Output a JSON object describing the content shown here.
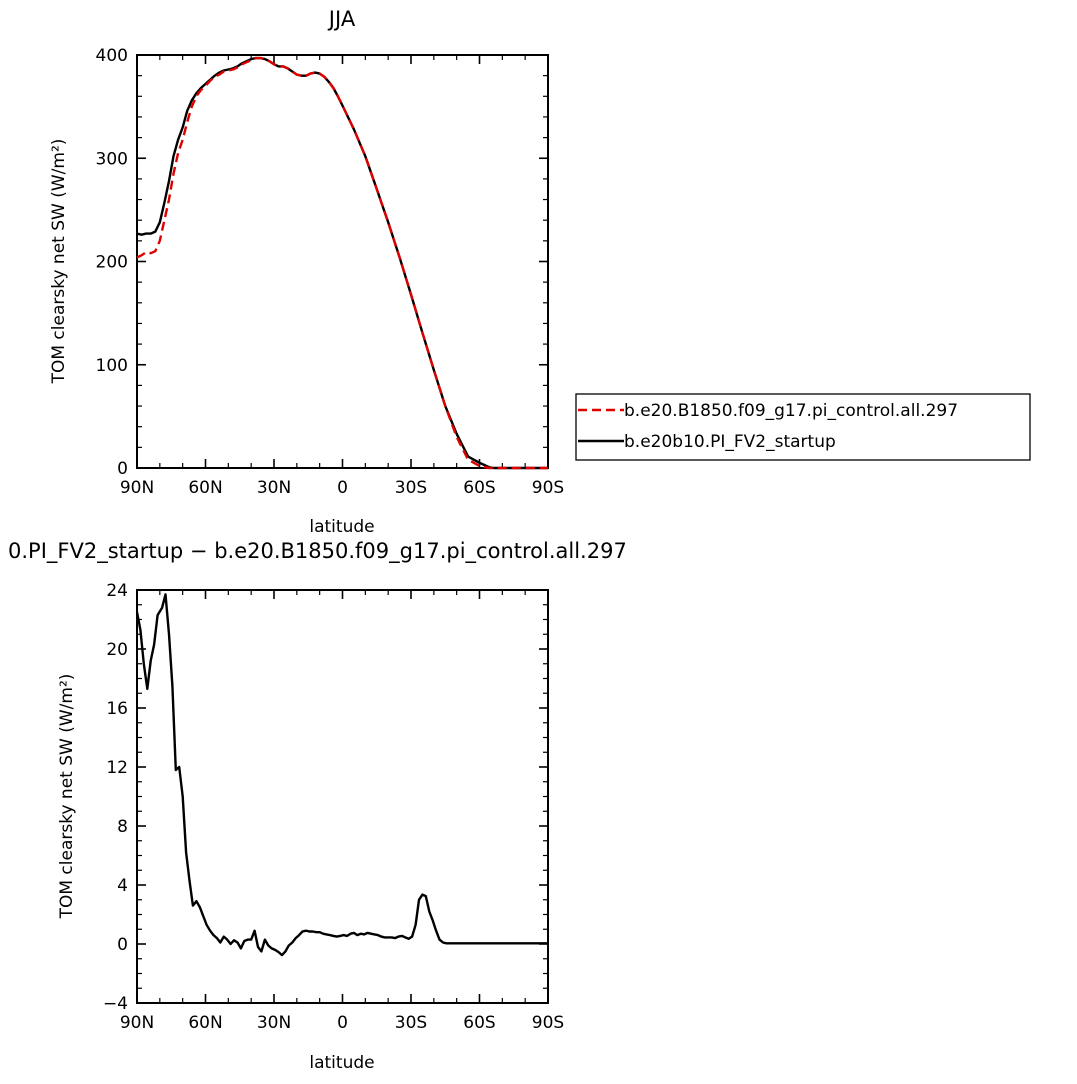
{
  "chart_data": [
    {
      "type": "line",
      "title": "JJA",
      "xlabel": "latitude",
      "ylabel": "TOM clearsky net SW (W/m²)",
      "xlim": [
        90,
        -90
      ],
      "ylim": [
        0,
        400
      ],
      "xticks": [
        {
          "value": 90,
          "label": "90N"
        },
        {
          "value": 60,
          "label": "60N"
        },
        {
          "value": 30,
          "label": "30N"
        },
        {
          "value": 0,
          "label": "0"
        },
        {
          "value": -30,
          "label": "30S"
        },
        {
          "value": -60,
          "label": "60S"
        },
        {
          "value": -90,
          "label": "90S"
        }
      ],
      "yticks": [
        {
          "value": 0,
          "label": "0"
        },
        {
          "value": 100,
          "label": "100"
        },
        {
          "value": 200,
          "label": "200"
        },
        {
          "value": 300,
          "label": "300"
        },
        {
          "value": 400,
          "label": "400"
        }
      ],
      "legend_position": "right",
      "series": [
        {
          "name": "b.e20.B1850.f09_g17.pi_control.all.297",
          "color": "#e00000",
          "dash": "dashed",
          "x": [
            90,
            88,
            86,
            84,
            82,
            80,
            78,
            76,
            74,
            72,
            70,
            68,
            66,
            64,
            62,
            60,
            58,
            56,
            54,
            52,
            50,
            48,
            46,
            44,
            42,
            40,
            38,
            36,
            34,
            32,
            30,
            28,
            26,
            24,
            22,
            20,
            18,
            16,
            14,
            12,
            10,
            8,
            6,
            4,
            2,
            0,
            -5,
            -10,
            -15,
            -20,
            -25,
            -30,
            -35,
            -40,
            -45,
            -50,
            -55,
            -60,
            -62,
            -64,
            -66,
            -68,
            -70,
            -72,
            -75,
            -80,
            -85,
            -90
          ],
          "y": [
            204,
            206,
            209,
            208,
            210,
            220,
            240,
            260,
            285,
            305,
            318,
            335,
            350,
            360,
            366,
            370,
            375,
            379,
            381,
            384,
            385,
            386,
            388,
            391,
            393,
            395,
            397,
            397,
            396,
            394,
            391,
            389,
            389,
            387,
            384,
            381,
            380,
            380,
            382,
            383,
            382,
            379,
            374,
            368,
            360,
            351,
            328,
            302,
            270,
            238,
            204,
            168,
            131,
            95,
            60,
            30,
            8,
            2,
            1,
            0,
            0,
            0,
            0,
            0,
            0,
            0,
            0,
            0
          ]
        },
        {
          "name": "b.e20b10.PI_FV2_startup",
          "color": "#000000",
          "dash": "solid",
          "x": [
            90,
            88,
            86,
            84,
            82,
            80,
            78,
            76,
            74,
            72,
            70,
            68,
            66,
            64,
            62,
            60,
            58,
            56,
            54,
            52,
            50,
            48,
            46,
            44,
            42,
            40,
            38,
            36,
            34,
            32,
            30,
            28,
            26,
            24,
            22,
            20,
            18,
            16,
            14,
            12,
            10,
            8,
            6,
            4,
            2,
            0,
            -5,
            -10,
            -15,
            -20,
            -25,
            -30,
            -35,
            -40,
            -45,
            -50,
            -55,
            -60,
            -62,
            -64,
            -66,
            -68,
            -70,
            -72,
            -75,
            -80,
            -85,
            -90
          ],
          "y": [
            227,
            226,
            227,
            227,
            229,
            238,
            257,
            278,
            302,
            318,
            330,
            346,
            356,
            363,
            368,
            372,
            376,
            380,
            383,
            385,
            386,
            387,
            389,
            392,
            394,
            396,
            397,
            397,
            396,
            394,
            391,
            389,
            389,
            387,
            384,
            381,
            380,
            380,
            382,
            383,
            382,
            379,
            374,
            368,
            360,
            351,
            328,
            302,
            270,
            238,
            204,
            168,
            131,
            95,
            60,
            33,
            11,
            5,
            3,
            1,
            0,
            0,
            0,
            0,
            0,
            0,
            0,
            0
          ]
        }
      ]
    },
    {
      "type": "line",
      "title": "0.PI_FV2_startup − b.e20.B1850.f09_g17.pi_control.all.297",
      "xlabel": "latitude",
      "ylabel": "TOM clearsky net SW (W/m²)",
      "xlim": [
        90,
        -90
      ],
      "ylim": [
        -4,
        24
      ],
      "xticks": [
        {
          "value": 90,
          "label": "90N"
        },
        {
          "value": 60,
          "label": "60N"
        },
        {
          "value": 30,
          "label": "30N"
        },
        {
          "value": 0,
          "label": "0"
        },
        {
          "value": -30,
          "label": "30S"
        },
        {
          "value": -60,
          "label": "60S"
        },
        {
          "value": -90,
          "label": "90S"
        }
      ],
      "yticks": [
        {
          "value": -4,
          "label": "−4"
        },
        {
          "value": 0,
          "label": "0"
        },
        {
          "value": 4,
          "label": "4"
        },
        {
          "value": 8,
          "label": "8"
        },
        {
          "value": 12,
          "label": "12"
        },
        {
          "value": 16,
          "label": "16"
        },
        {
          "value": 20,
          "label": "20"
        },
        {
          "value": 24,
          "label": "24"
        }
      ],
      "series": [
        {
          "color": "#000000",
          "dash": "solid",
          "x": [
            90,
            88.5,
            87,
            85.5,
            84,
            82.5,
            81,
            79,
            77.5,
            76,
            74.5,
            73,
            71.5,
            70,
            68.5,
            67,
            65.5,
            64,
            62.5,
            61,
            59.5,
            58,
            56.5,
            55,
            53.5,
            52,
            50.5,
            49,
            47.5,
            46,
            44.5,
            43,
            41.5,
            40,
            38.5,
            37,
            35.5,
            34,
            32.5,
            31,
            29.5,
            28,
            26.5,
            25,
            23.5,
            22,
            20.5,
            19,
            17.5,
            16,
            14.5,
            13,
            11.5,
            10,
            8.5,
            7,
            5.5,
            4,
            2.5,
            1,
            -0.5,
            -2,
            -3.5,
            -5,
            -6.5,
            -8,
            -9.5,
            -11,
            -12.5,
            -14,
            -15.5,
            -17,
            -18.5,
            -20,
            -21.5,
            -23,
            -24.5,
            -26,
            -27.5,
            -29,
            -30.5,
            -32,
            -33.5,
            -35,
            -36.5,
            -38,
            -39.5,
            -41,
            -42.5,
            -44,
            -45.5,
            -47,
            -48.5,
            -50,
            -51.5,
            -53,
            -54.5,
            -56,
            -57.5,
            -59,
            -60.5,
            -62,
            -63.5,
            -65,
            -66.5,
            -68,
            -69.5,
            -71,
            -72.5,
            -74,
            -76,
            -80,
            -85,
            -90
          ],
          "y": [
            22.5,
            21.3,
            19.0,
            17.3,
            19.2,
            20.3,
            22.3,
            22.8,
            23.7,
            21.0,
            17.5,
            11.8,
            12.0,
            10.0,
            6.2,
            4.3,
            2.6,
            2.9,
            2.5,
            1.9,
            1.3,
            0.9,
            0.6,
            0.4,
            0.1,
            0.5,
            0.3,
            0.0,
            0.25,
            0.1,
            -0.3,
            0.2,
            0.3,
            0.3,
            0.9,
            -0.2,
            -0.5,
            0.3,
            -0.1,
            -0.3,
            -0.4,
            -0.55,
            -0.75,
            -0.5,
            -0.1,
            0.1,
            0.4,
            0.6,
            0.85,
            0.9,
            0.85,
            0.85,
            0.8,
            0.8,
            0.7,
            0.65,
            0.6,
            0.55,
            0.5,
            0.55,
            0.6,
            0.55,
            0.7,
            0.75,
            0.6,
            0.7,
            0.65,
            0.75,
            0.7,
            0.65,
            0.6,
            0.5,
            0.45,
            0.45,
            0.45,
            0.4,
            0.5,
            0.55,
            0.45,
            0.35,
            0.5,
            1.3,
            3.0,
            3.35,
            3.25,
            2.2,
            1.6,
            0.9,
            0.3,
            0.1,
            0.05,
            0.05,
            0.05,
            0.05,
            0.05,
            0.05,
            0.05,
            0.05,
            0.05,
            0.05,
            0.05,
            0.05,
            0.05,
            0.05,
            0.05,
            0.05,
            0.05,
            0.05,
            0.05,
            0.05,
            0.05,
            0.05,
            0.05,
            0.05
          ]
        }
      ]
    }
  ]
}
